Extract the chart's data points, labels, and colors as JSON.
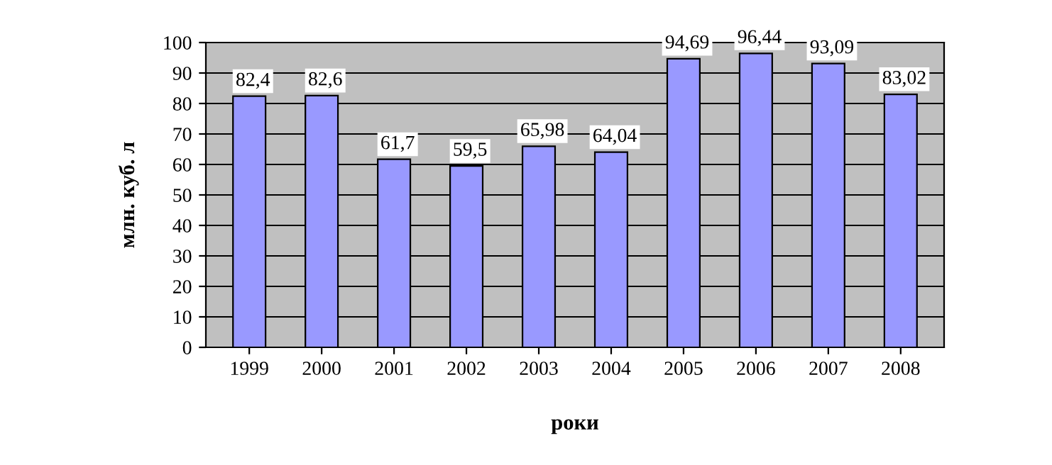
{
  "chart_data": {
    "type": "bar",
    "xlabel": "роки",
    "ylabel": "млн. куб. л",
    "categories": [
      "1999",
      "2000",
      "2001",
      "2002",
      "2003",
      "2004",
      "2005",
      "2006",
      "2007",
      "2008"
    ],
    "values": [
      82.4,
      82.6,
      61.7,
      59.5,
      65.98,
      64.04,
      94.69,
      96.44,
      93.09,
      83.02
    ],
    "value_labels": [
      "82,4",
      "82,6",
      "61,7",
      "59,5",
      "65,98",
      "64,04",
      "94,69",
      "96,44",
      "93,09",
      "83,02"
    ],
    "color": "#9999ff",
    "ylim": [
      0,
      100
    ],
    "yticks": [
      0,
      10,
      20,
      30,
      40,
      50,
      60,
      70,
      80,
      90,
      100
    ],
    "grid": "y",
    "legend": false
  }
}
